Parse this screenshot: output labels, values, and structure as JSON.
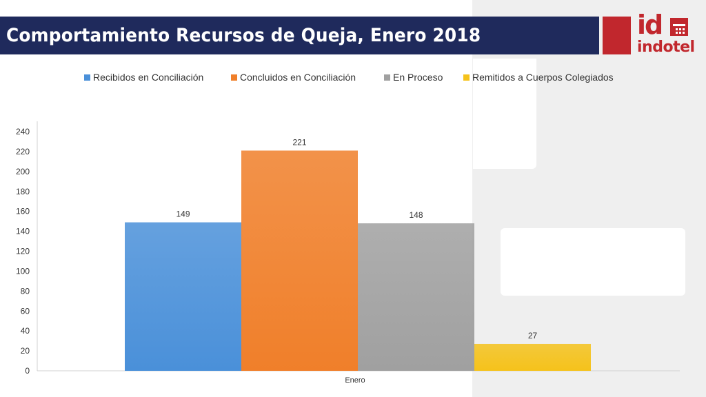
{
  "header": {
    "title": "Comportamiento Recursos de Queja, Enero 2018",
    "title_bg": "#1f2a5c"
  },
  "logo": {
    "mark": "id",
    "name": "indotel",
    "color": "#c1272d"
  },
  "chart_data": {
    "type": "bar",
    "categories": [
      "Enero"
    ],
    "series": [
      {
        "name": "Recibidos en Conciliación",
        "values": [
          149
        ],
        "color": "#4a90d9"
      },
      {
        "name": "Concluidos en Conciliación",
        "values": [
          221
        ],
        "color": "#f07f2a"
      },
      {
        "name": "En Proceso",
        "values": [
          148
        ],
        "color": "#a0a0a0"
      },
      {
        "name": "Remitidos a Cuerpos Colegiados",
        "values": [
          27
        ],
        "color": "#f5c21b"
      }
    ],
    "title": "",
    "xlabel": "",
    "ylabel": "",
    "ylim": [
      0,
      240
    ],
    "yticks": [
      0,
      20,
      40,
      60,
      80,
      100,
      120,
      140,
      160,
      180,
      200,
      220,
      240
    ],
    "data_labels": [
      "149",
      "221",
      "148",
      "27"
    ],
    "legend_position": "top",
    "grid": false
  }
}
